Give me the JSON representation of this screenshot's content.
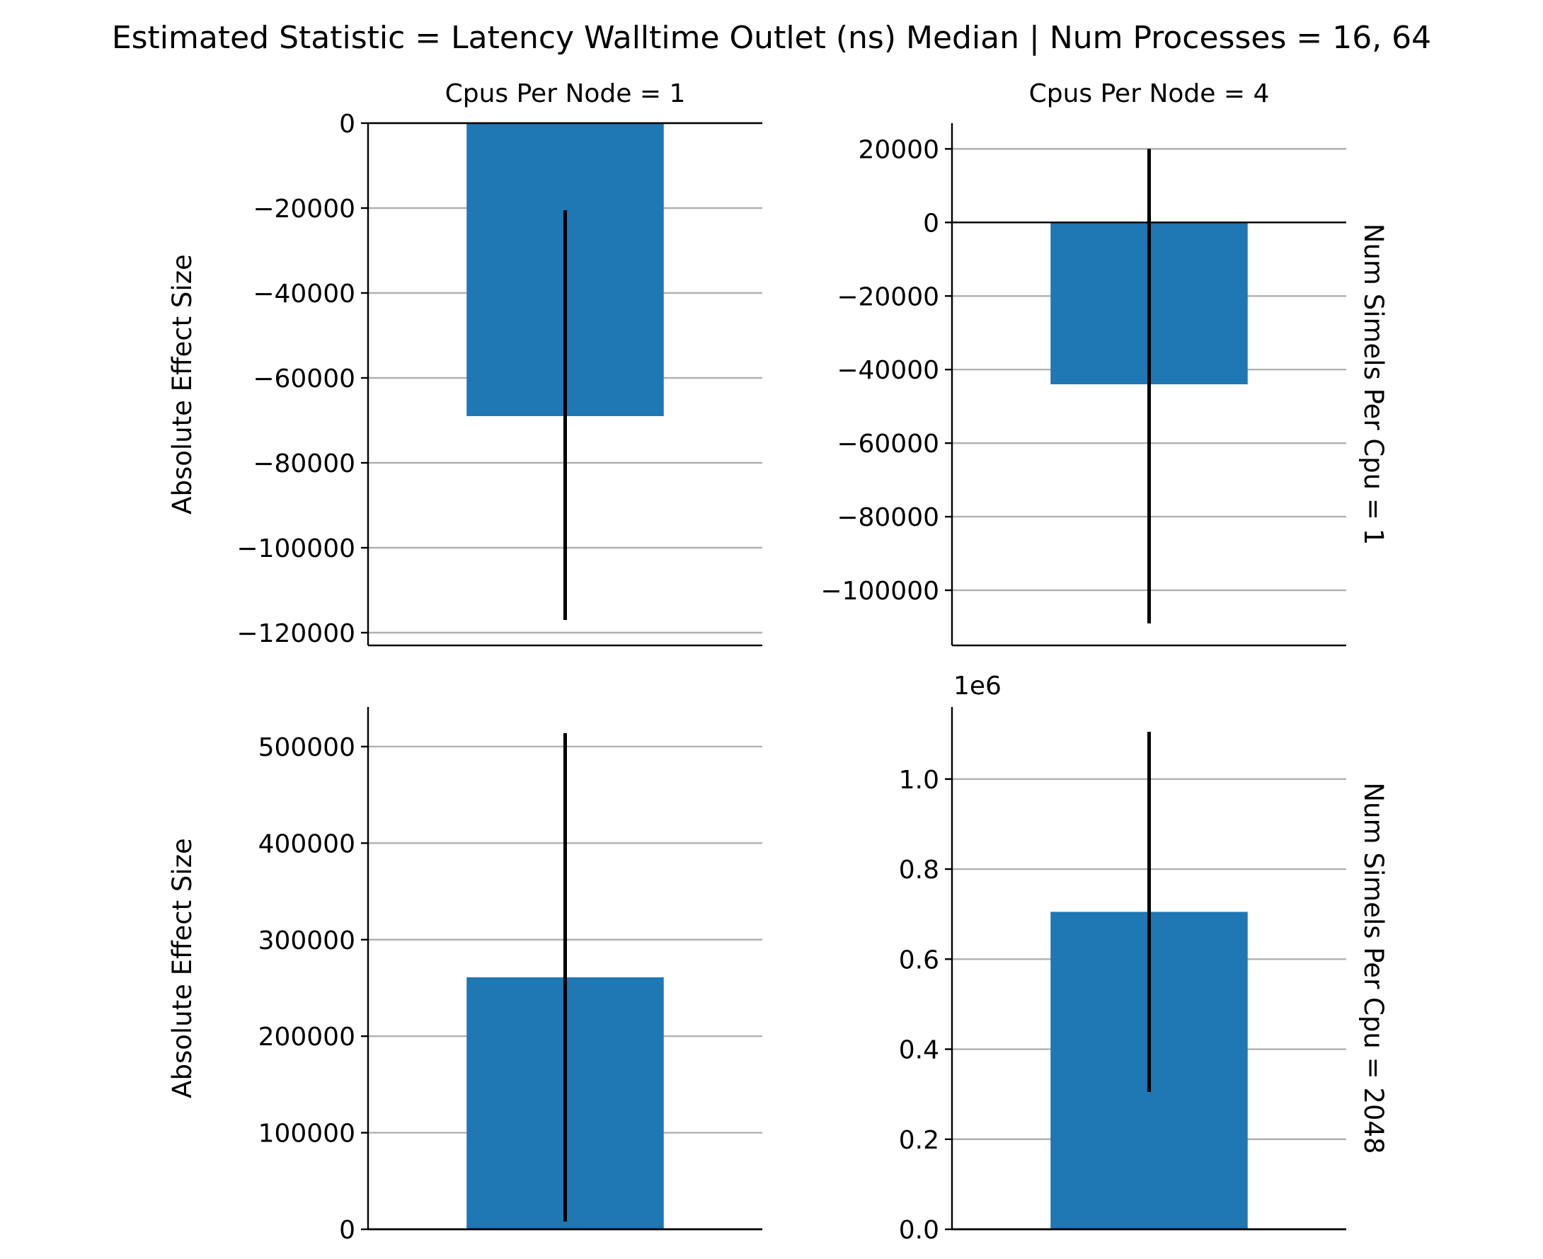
{
  "figure": {
    "title": "Estimated Statistic = Latency Walltime Outlet (ns) Median | Num Processes = 16, 64"
  },
  "colors": {
    "bar": "#1f77b4",
    "errorbar": "#000000",
    "grid": "#b0b0b0",
    "axis": "#000000"
  },
  "chart_data": [
    {
      "type": "bar",
      "title": "Cpus Per Node = 1",
      "row_label": "",
      "ylabel": "Absolute Effect Size",
      "ylim": [
        -123000,
        0
      ],
      "yticks": [
        0,
        -20000,
        -40000,
        -60000,
        -80000,
        -100000,
        -120000
      ],
      "ytick_labels": [
        "0",
        "−20000",
        "−40000",
        "−60000",
        "−80000",
        "−100000",
        "−120000"
      ],
      "offset_label": "",
      "value": -69000,
      "ci": [
        -117000,
        -20500
      ],
      "grid": true
    },
    {
      "type": "bar",
      "title": "Cpus Per Node = 4",
      "row_label": "Num Simels Per Cpu = 1",
      "ylabel": "",
      "ylim": [
        -115000,
        27000
      ],
      "yticks": [
        20000,
        0,
        -20000,
        -40000,
        -60000,
        -80000,
        -100000
      ],
      "ytick_labels": [
        "20000",
        "0",
        "−20000",
        "−40000",
        "−60000",
        "−80000",
        "−100000"
      ],
      "offset_label": "",
      "value": -44000,
      "ci": [
        -109000,
        20000
      ],
      "grid": true
    },
    {
      "type": "bar",
      "title": "",
      "row_label": "",
      "ylabel": "Absolute Effect Size",
      "ylim": [
        0,
        541000
      ],
      "yticks": [
        0,
        100000,
        200000,
        300000,
        400000,
        500000
      ],
      "ytick_labels": [
        "0",
        "100000",
        "200000",
        "300000",
        "400000",
        "500000"
      ],
      "offset_label": "",
      "value": 261000,
      "ci": [
        8000,
        514000
      ],
      "grid": true
    },
    {
      "type": "bar",
      "title": "",
      "row_label": "Num Simels Per Cpu = 2048",
      "ylabel": "",
      "ylim": [
        0,
        1.16
      ],
      "yticks": [
        0.0,
        0.2,
        0.4,
        0.6,
        0.8,
        1.0
      ],
      "ytick_labels": [
        "0.0",
        "0.2",
        "0.4",
        "0.6",
        "0.8",
        "1.0"
      ],
      "offset_label": "1e6",
      "value": 0.705,
      "ci": [
        0.305,
        1.105
      ],
      "grid": true
    }
  ]
}
